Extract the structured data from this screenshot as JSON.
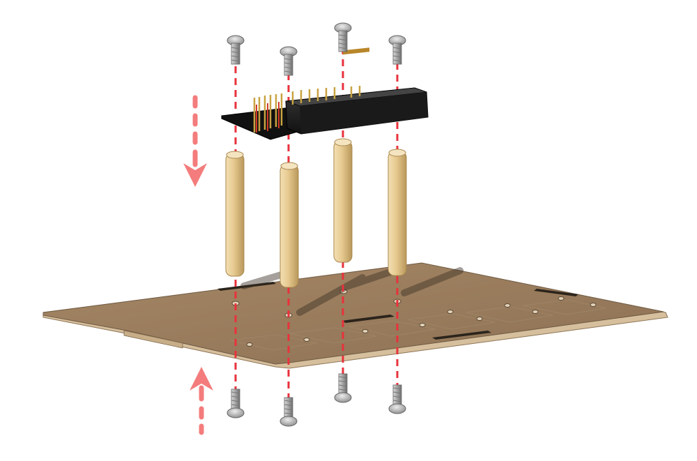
{
  "diagram": {
    "kind": "exploded-assembly",
    "background": "#ffffff",
    "colors": {
      "guide_line": "#e8323c",
      "arrow": "#f47c7c",
      "standoff": "#e6c98f",
      "standoff_edge": "#a9884e",
      "plate_top": "#a88b66",
      "plate_edge": "#d9c3a3",
      "board_body": "#1c1c1c",
      "header_pins": "#c4a24a",
      "screw_metal": "#9c9c9c"
    },
    "parts": {
      "top_screws": {
        "count": 4,
        "icon": "screw-icon"
      },
      "board": {
        "icon": "header-board-icon"
      },
      "standoffs": {
        "count": 4,
        "icon": "brass-standoff-icon"
      },
      "base_plate": {
        "icon": "base-plate-icon"
      },
      "bottom_screws": {
        "count": 4,
        "icon": "screw-icon"
      }
    },
    "arrows": [
      {
        "name": "down-arrow-icon",
        "direction": "down"
      },
      {
        "name": "up-arrow-icon",
        "direction": "up"
      }
    ]
  }
}
